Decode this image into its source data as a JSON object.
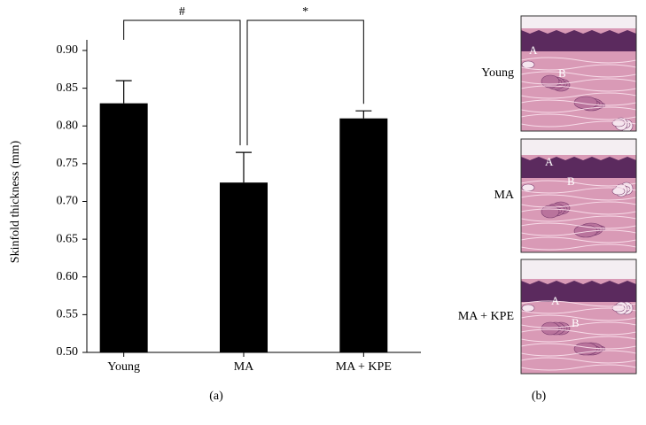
{
  "chart_data": {
    "type": "bar",
    "ylabel": "Skinfold thickness (mm)",
    "categories": [
      "Young",
      "MA",
      "MA + KPE"
    ],
    "values": [
      0.83,
      0.725,
      0.81
    ],
    "errors": [
      0.03,
      0.04,
      0.01
    ],
    "color": "#000000",
    "ylim": [
      0.5,
      0.9
    ],
    "yticks": [
      {
        "value": 0.5,
        "label": "0.50"
      },
      0.55,
      {
        "value": 0.6,
        "label": "0.60"
      },
      0.65,
      {
        "value": 0.7,
        "label": "0.70"
      },
      0.75,
      {
        "value": 0.8,
        "label": "0.80"
      },
      0.85,
      {
        "value": 0.9,
        "label": "0.90"
      }
    ],
    "annotations": [
      "#",
      "*"
    ],
    "caption": "(a)"
  },
  "panel_b": {
    "caption": "(b)",
    "images": [
      {
        "label": "Young",
        "marks": [
          "A",
          "B"
        ]
      },
      {
        "label": "MA",
        "marks": [
          "A",
          "B"
        ]
      },
      {
        "label": "MA + KPE",
        "marks": [
          "A",
          "B"
        ]
      }
    ]
  }
}
